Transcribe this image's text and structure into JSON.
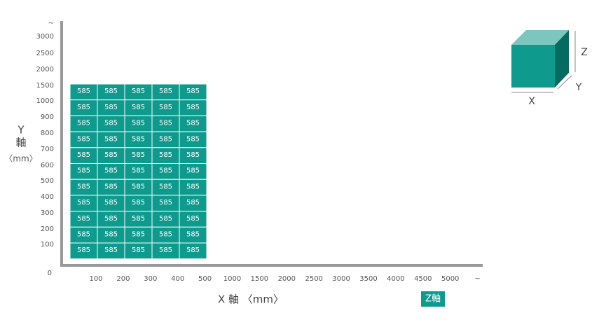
{
  "y_axis": {
    "label": [
      "Y",
      "軸",
      "〈mm〉"
    ],
    "ticks": [
      "~",
      3000,
      2500,
      2000,
      1500,
      1000,
      900,
      800,
      700,
      600,
      500,
      400,
      300,
      200,
      100
    ],
    "origin": 0
  },
  "x_axis": {
    "label": "X 軸 〈mm〉",
    "ticks": [
      100,
      200,
      300,
      400,
      500,
      1000,
      1500,
      2000,
      2500,
      3000,
      3500,
      4000,
      4500,
      5000,
      "~"
    ]
  },
  "z_button": "Z軸",
  "cube": {
    "x": "X",
    "y": "Y",
    "z": "Z"
  },
  "grid": {
    "rows": [
      [
        585,
        585,
        585,
        585,
        585
      ],
      [
        585,
        585,
        585,
        585,
        585
      ],
      [
        585,
        585,
        585,
        585,
        585
      ],
      [
        585,
        585,
        585,
        585,
        585
      ],
      [
        585,
        585,
        585,
        585,
        585
      ],
      [
        585,
        585,
        585,
        585,
        585
      ],
      [
        585,
        585,
        585,
        585,
        585
      ],
      [
        585,
        585,
        585,
        585,
        585
      ],
      [
        585,
        585,
        585,
        585,
        585
      ],
      [
        585,
        585,
        585,
        585,
        585
      ],
      [
        585,
        585,
        585,
        585,
        585
      ]
    ]
  }
}
